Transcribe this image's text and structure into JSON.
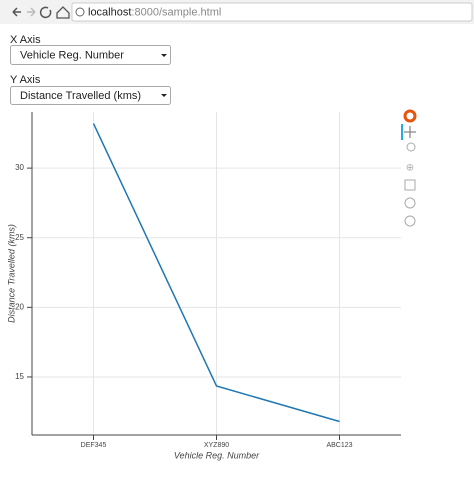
{
  "browser": {
    "host": "localhost",
    "path": ":8000/sample.html"
  },
  "controls": {
    "x_label": "X Axis",
    "x_selected": "Vehicle Reg. Number",
    "y_label": "Y Axis",
    "y_selected": "Distance Travelled (kms)"
  },
  "chart_data": {
    "type": "line",
    "x_label": "Vehicle Reg. Number",
    "y_label": "Distance Travelled (kms)",
    "categories": [
      "DEF345",
      "XYZ890",
      "ABC123"
    ],
    "values": [
      33.2,
      14.35,
      11.8
    ],
    "color": "#1f77b4",
    "ylim": [
      10.83,
      34.03
    ],
    "yticks": [
      15,
      20,
      25,
      30
    ],
    "grid": true
  }
}
